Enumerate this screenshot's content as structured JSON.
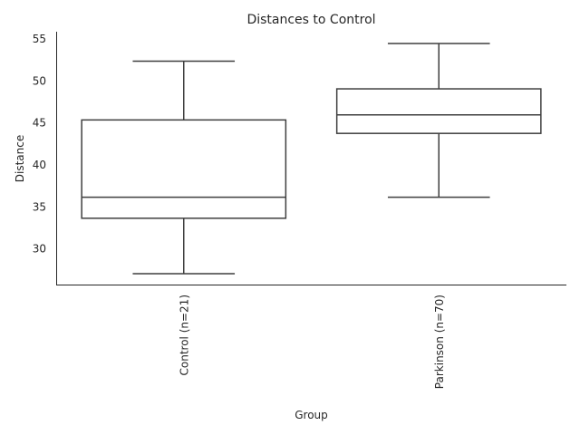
{
  "chart_data": {
    "type": "box",
    "title": "Distances to Control",
    "xlabel": "Group",
    "ylabel": "Distance",
    "ylim": [
      25.6,
      55.8
    ],
    "yticks": [
      30,
      35,
      40,
      45,
      50,
      55
    ],
    "grid": false,
    "categories": [
      "Control (n=21)",
      "Parkinson (n=70)"
    ],
    "boxes": [
      {
        "category": "Control (n=21)",
        "whisker_low": 27.0,
        "q1": 33.6,
        "median": 36.1,
        "q3": 45.3,
        "whisker_high": 52.3
      },
      {
        "category": "Parkinson (n=70)",
        "whisker_low": 36.1,
        "q1": 43.7,
        "median": 45.9,
        "q3": 49.0,
        "whisker_high": 54.4
      }
    ]
  }
}
